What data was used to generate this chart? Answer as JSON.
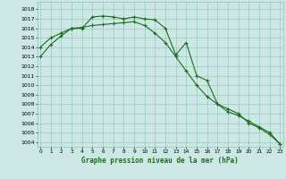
{
  "line1_x": [
    0,
    1,
    2,
    3,
    4,
    5,
    6,
    7,
    8,
    9,
    10,
    11,
    12,
    13,
    14,
    15,
    16,
    17,
    18,
    19,
    20,
    21,
    22,
    23
  ],
  "line1_y": [
    1013.0,
    1014.3,
    1015.2,
    1016.0,
    1016.0,
    1017.2,
    1017.3,
    1017.2,
    1017.0,
    1017.2,
    1017.0,
    1016.9,
    1016.0,
    1013.2,
    1014.5,
    1011.0,
    1010.5,
    1008.0,
    1007.5,
    1007.0,
    1006.0,
    1005.5,
    1004.8,
    1003.8
  ],
  "line2_x": [
    0,
    1,
    2,
    3,
    4,
    5,
    6,
    7,
    8,
    9,
    10,
    11,
    12,
    13,
    14,
    15,
    16,
    17,
    18,
    19,
    20,
    21,
    22,
    23
  ],
  "line2_y": [
    1014.0,
    1015.0,
    1015.5,
    1016.0,
    1016.1,
    1016.3,
    1016.4,
    1016.5,
    1016.6,
    1016.7,
    1016.3,
    1015.5,
    1014.5,
    1013.0,
    1011.5,
    1010.0,
    1008.8,
    1008.0,
    1007.2,
    1006.8,
    1006.2,
    1005.6,
    1005.0,
    1003.8
  ],
  "line_color": "#1a6e1a",
  "bg_color": "#cde8e4",
  "grid_color": "#88c4bc",
  "title": "Graphe pression niveau de la mer (hPa)",
  "ytick_min": 1004,
  "ytick_max": 1018,
  "ylim_min": 1003.5,
  "ylim_max": 1018.8,
  "xlim_min": -0.3,
  "xlim_max": 23.3
}
